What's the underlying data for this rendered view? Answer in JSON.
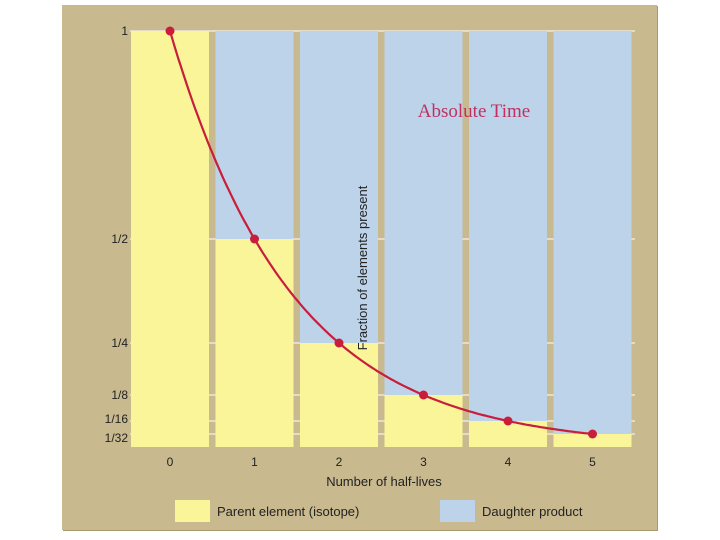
{
  "chart_data": {
    "type": "bar",
    "title": "",
    "overlay_text": "Absolute Time",
    "xlabel": "Number of half-lives",
    "ylabel": "Fraction of elements present",
    "x": [
      0,
      1,
      2,
      3,
      4,
      5
    ],
    "x_tick_labels": [
      "0",
      "1",
      "2",
      "3",
      "4",
      "5"
    ],
    "y_ticks": [
      {
        "value": 1,
        "label": "1"
      },
      {
        "value": 0.5,
        "label": "1/2"
      },
      {
        "value": 0.25,
        "label": "1/4"
      },
      {
        "value": 0.125,
        "label": "1/8"
      },
      {
        "value": 0.0625,
        "label": "1/16"
      },
      {
        "value": 0.03125,
        "label": "1/32"
      }
    ],
    "ylim": [
      0,
      1
    ],
    "stacked": true,
    "series": [
      {
        "name": "Parent element (isotope)",
        "color": "#fbf59a",
        "values": [
          1,
          0.5,
          0.25,
          0.125,
          0.0625,
          0.03125
        ]
      },
      {
        "name": "Daughter product",
        "color": "#bcd3ea",
        "values": [
          0,
          0.5,
          0.75,
          0.875,
          0.9375,
          0.96875
        ]
      }
    ],
    "curve": {
      "color": "#c81e3c",
      "points": [
        1,
        0.5,
        0.25,
        0.125,
        0.0625,
        0.03125
      ]
    },
    "grid": "horizontal at tick values",
    "legend": "bottom",
    "colors": {
      "panel": "#c9b98f",
      "gridline": "#ffffff",
      "overlay_text": "#c03060"
    }
  }
}
